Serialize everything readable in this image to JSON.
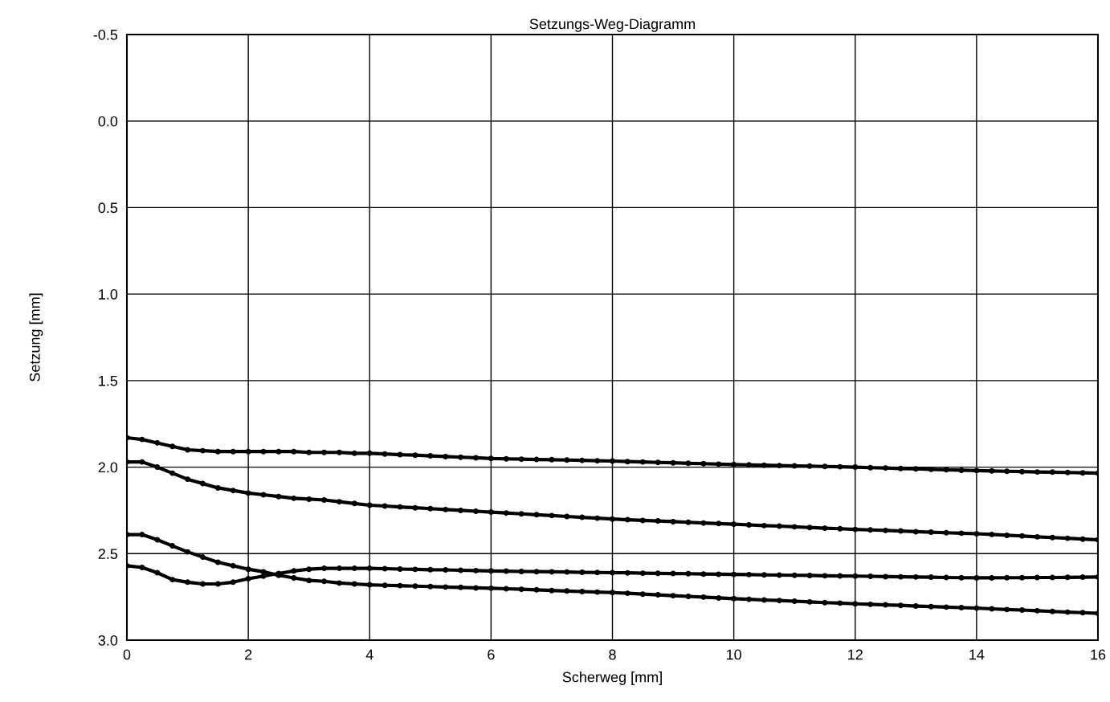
{
  "chart_data": {
    "type": "line",
    "title": "Setzungs-Weg-Diagramm",
    "xlabel": "Scherweg [mm]",
    "ylabel": "Setzung [mm]",
    "x": [
      0,
      0.25,
      0.5,
      0.75,
      1,
      1.25,
      1.5,
      1.75,
      2,
      2.25,
      2.5,
      2.75,
      3,
      3.25,
      3.5,
      3.75,
      4,
      4.25,
      4.5,
      4.75,
      5,
      5.25,
      5.5,
      5.75,
      6,
      6.25,
      6.5,
      6.75,
      7,
      7.25,
      7.5,
      7.75,
      8,
      8.25,
      8.5,
      8.75,
      9,
      9.25,
      9.5,
      9.75,
      10,
      10.25,
      10.5,
      10.75,
      11,
      11.25,
      11.5,
      11.75,
      12,
      12.25,
      12.5,
      12.75,
      13,
      13.25,
      13.5,
      13.75,
      14,
      14.25,
      14.5,
      14.75,
      15,
      15.25,
      15.5,
      15.75,
      16
    ],
    "series": [
      {
        "color": "#000000",
        "values": [
          1.83,
          1.84,
          1.86,
          1.88,
          1.9,
          1.905,
          1.91,
          1.91,
          1.91,
          1.91,
          1.91,
          1.91,
          1.915,
          1.915,
          1.915,
          1.92,
          1.92,
          1.924,
          1.928,
          1.931,
          1.935,
          1.939,
          1.943,
          1.946,
          1.95,
          1.952,
          1.954,
          1.956,
          1.957,
          1.959,
          1.961,
          1.963,
          1.965,
          1.968,
          1.97,
          1.973,
          1.975,
          1.978,
          1.98,
          1.983,
          1.985,
          1.987,
          1.989,
          1.991,
          1.993,
          1.994,
          1.996,
          1.998,
          2.0,
          2.003,
          2.005,
          2.008,
          2.01,
          2.013,
          2.015,
          2.018,
          2.02,
          2.022,
          2.024,
          2.026,
          2.028,
          2.029,
          2.031,
          2.033,
          2.035
        ]
      },
      {
        "color": "#000000",
        "values": [
          1.97,
          1.97,
          2.0,
          2.035,
          2.07,
          2.095,
          2.12,
          2.135,
          2.15,
          2.16,
          2.17,
          2.18,
          2.185,
          2.19,
          2.2,
          2.21,
          2.22,
          2.225,
          2.23,
          2.235,
          2.24,
          2.245,
          2.25,
          2.255,
          2.26,
          2.265,
          2.27,
          2.275,
          2.28,
          2.285,
          2.29,
          2.295,
          2.3,
          2.304,
          2.308,
          2.311,
          2.315,
          2.319,
          2.323,
          2.326,
          2.33,
          2.334,
          2.338,
          2.341,
          2.345,
          2.349,
          2.353,
          2.356,
          2.36,
          2.363,
          2.366,
          2.369,
          2.373,
          2.376,
          2.379,
          2.382,
          2.385,
          2.389,
          2.394,
          2.398,
          2.403,
          2.407,
          2.411,
          2.416,
          2.42
        ]
      },
      {
        "color": "#000000",
        "values": [
          2.39,
          2.39,
          2.42,
          2.455,
          2.49,
          2.52,
          2.55,
          2.57,
          2.59,
          2.605,
          2.625,
          2.64,
          2.655,
          2.66,
          2.67,
          2.675,
          2.68,
          2.683,
          2.685,
          2.688,
          2.69,
          2.693,
          2.695,
          2.698,
          2.7,
          2.703,
          2.706,
          2.709,
          2.713,
          2.716,
          2.719,
          2.722,
          2.725,
          2.729,
          2.734,
          2.738,
          2.743,
          2.747,
          2.751,
          2.756,
          2.76,
          2.764,
          2.768,
          2.771,
          2.775,
          2.779,
          2.783,
          2.786,
          2.79,
          2.793,
          2.796,
          2.799,
          2.803,
          2.806,
          2.809,
          2.812,
          2.815,
          2.819,
          2.823,
          2.826,
          2.83,
          2.834,
          2.838,
          2.841,
          2.845
        ]
      },
      {
        "color": "#000000",
        "values": [
          2.57,
          2.58,
          2.61,
          2.65,
          2.665,
          2.675,
          2.675,
          2.665,
          2.645,
          2.63,
          2.615,
          2.6,
          2.59,
          2.585,
          2.585,
          2.585,
          2.585,
          2.587,
          2.589,
          2.591,
          2.593,
          2.594,
          2.596,
          2.598,
          2.6,
          2.601,
          2.603,
          2.604,
          2.605,
          2.606,
          2.608,
          2.609,
          2.61,
          2.611,
          2.613,
          2.614,
          2.615,
          2.616,
          2.618,
          2.619,
          2.62,
          2.621,
          2.623,
          2.624,
          2.625,
          2.626,
          2.628,
          2.629,
          2.63,
          2.631,
          2.633,
          2.634,
          2.635,
          2.636,
          2.638,
          2.639,
          2.64,
          2.64,
          2.639,
          2.639,
          2.638,
          2.638,
          2.637,
          2.636,
          2.635
        ]
      }
    ],
    "xlim": [
      0,
      16
    ],
    "xticks": [
      0,
      2,
      4,
      6,
      8,
      10,
      12,
      14,
      16
    ],
    "ylim": [
      3.0,
      -0.5
    ],
    "yticks": [
      {
        "value": -0.5,
        "label": "-0.5"
      },
      {
        "value": 0,
        "label": "0.0"
      },
      {
        "value": 0.5,
        "label": "0.5"
      },
      {
        "value": 1,
        "label": "1.0"
      },
      {
        "value": 1.5,
        "label": "1.5"
      },
      {
        "value": 2,
        "label": "2.0"
      },
      {
        "value": 2.5,
        "label": "2.5"
      },
      {
        "value": 3,
        "label": "3.0"
      }
    ],
    "grid": true,
    "marker": "circle",
    "line_style": "solid"
  }
}
